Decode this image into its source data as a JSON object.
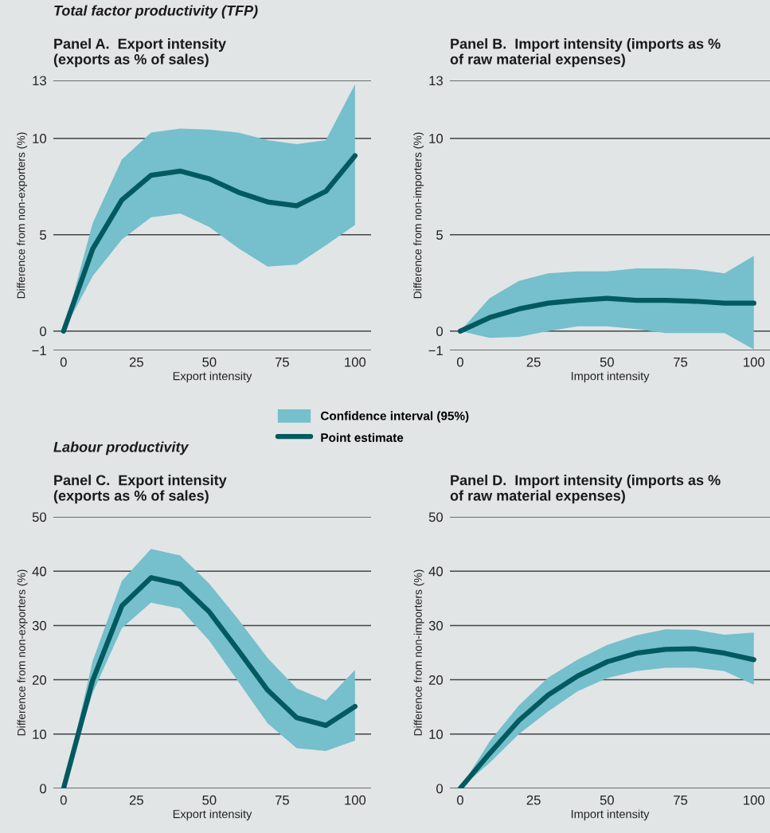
{
  "chart_data": [
    {
      "type": "line",
      "title": "Panel A.  Export intensity\n(exports as % of sales)",
      "annotations": [
        "Total factor productivity (TFP)",
        "Confidence interval (95%)"
      ],
      "xlabel": "Export intensity",
      "ylabel": "Difference from non-exporters (%)",
      "x": [
        0,
        10,
        20,
        30,
        40,
        50,
        60,
        70,
        80,
        90,
        100
      ],
      "series": [
        {
          "type": "line",
          "name": "Point estimate",
          "color": "#005a5f",
          "values": [
            0,
            4.26,
            6.8,
            8.08,
            8.3,
            7.9,
            7.2,
            6.7,
            6.5,
            7.25,
            9.1
          ],
          "lower": [
            0,
            2.85,
            4.75,
            5.9,
            6.1,
            5.4,
            4.3,
            3.35,
            3.45,
            4.45,
            5.5
          ],
          "upper": [
            0,
            5.6,
            8.9,
            10.3,
            10.5,
            10.45,
            10.3,
            9.9,
            9.7,
            9.9,
            12.8
          ]
        }
      ],
      "xlim": [
        -3.5,
        105.5
      ],
      "ylim": [
        -1,
        13
      ],
      "xticks": [
        0,
        25,
        50,
        75,
        100
      ],
      "yticks": [
        {
          "value": -1,
          "label": "−1"
        },
        0,
        5,
        10,
        13
      ],
      "grid": "y",
      "legend": "bottom"
    },
    {
      "type": "line",
      "title": "Panel B.  Import intensity (imports as %\nof raw material expenses)",
      "xlabel": "Import intensity",
      "ylabel": "Difference from non-importers (%)",
      "x": [
        0,
        10,
        20,
        30,
        40,
        50,
        60,
        70,
        80,
        90,
        100
      ],
      "series": [
        {
          "type": "line",
          "color": "#005a5f",
          "values": [
            0,
            0.7,
            1.15,
            1.45,
            1.6,
            1.7,
            1.6,
            1.6,
            1.55,
            1.45,
            1.45
          ],
          "lower": [
            0,
            -0.35,
            -0.3,
            0,
            0.25,
            0.25,
            0.1,
            -0.1,
            -0.1,
            -0.1,
            -0.95
          ],
          "upper": [
            0,
            1.7,
            2.6,
            3.0,
            3.1,
            3.1,
            3.25,
            3.25,
            3.2,
            3.0,
            3.9
          ]
        }
      ],
      "xlim": [
        -3.5,
        105.5
      ],
      "ylim": [
        -1,
        13
      ],
      "xticks": [
        0,
        25,
        50,
        75,
        100
      ],
      "yticks": [
        {
          "value": -1,
          "label": "−1"
        },
        0,
        5,
        10,
        13
      ],
      "grid": "y"
    },
    {
      "type": "line",
      "title": "Panel C.  Export intensity\n(exports as % of sales)",
      "annotations": [
        "Labour productivity"
      ],
      "xlabel": "Export intensity",
      "ylabel": "Difference from non-exporters (%)",
      "x": [
        0,
        10,
        20,
        30,
        40,
        50,
        60,
        70,
        80,
        90,
        100
      ],
      "series": [
        {
          "type": "line",
          "color": "#005a5f",
          "values": [
            0,
            19.9,
            33.6,
            38.8,
            37.6,
            32.5,
            25.4,
            18.1,
            13,
            11.6,
            15.1
          ],
          "lower": [
            0,
            17.6,
            29.5,
            34.2,
            33.1,
            27.2,
            19.6,
            12,
            7.4,
            6.9,
            8.8
          ],
          "upper": [
            0,
            23.5,
            38.2,
            44.1,
            42.9,
            37.7,
            31.1,
            24,
            18.4,
            16.2,
            21.8
          ]
        }
      ],
      "xlim": [
        -3.5,
        105.5
      ],
      "ylim": [
        0,
        50
      ],
      "xticks": [
        0,
        25,
        50,
        75,
        100
      ],
      "yticks": [
        0,
        10,
        20,
        30,
        40,
        50
      ],
      "grid": "y"
    },
    {
      "type": "line",
      "title": "Panel D.  Import intensity (imports as %\nof raw material expenses)",
      "xlabel": "Import intensity",
      "ylabel": "Difference from non-importers (%)",
      "x": [
        0,
        10,
        20,
        30,
        40,
        50,
        60,
        70,
        80,
        90,
        100
      ],
      "series": [
        {
          "type": "line",
          "color": "#005a5f",
          "values": [
            0,
            6.4,
            12.5,
            17.2,
            20.7,
            23.3,
            24.9,
            25.6,
            25.7,
            24.9,
            23.7
          ],
          "lower": [
            0,
            4.7,
            10,
            14.2,
            17.9,
            20.3,
            21.6,
            22.2,
            22.2,
            21.6,
            19.1
          ],
          "upper": [
            0,
            8.6,
            15.3,
            20.4,
            23.7,
            26.4,
            28.2,
            29.3,
            29.2,
            28.3,
            28.7
          ]
        }
      ],
      "xlim": [
        -3.5,
        105.5
      ],
      "ylim": [
        0,
        50
      ],
      "xticks": [
        0,
        25,
        50,
        75,
        100
      ],
      "yticks": [
        0,
        10,
        20,
        30,
        40,
        50
      ],
      "grid": "y"
    }
  ]
}
